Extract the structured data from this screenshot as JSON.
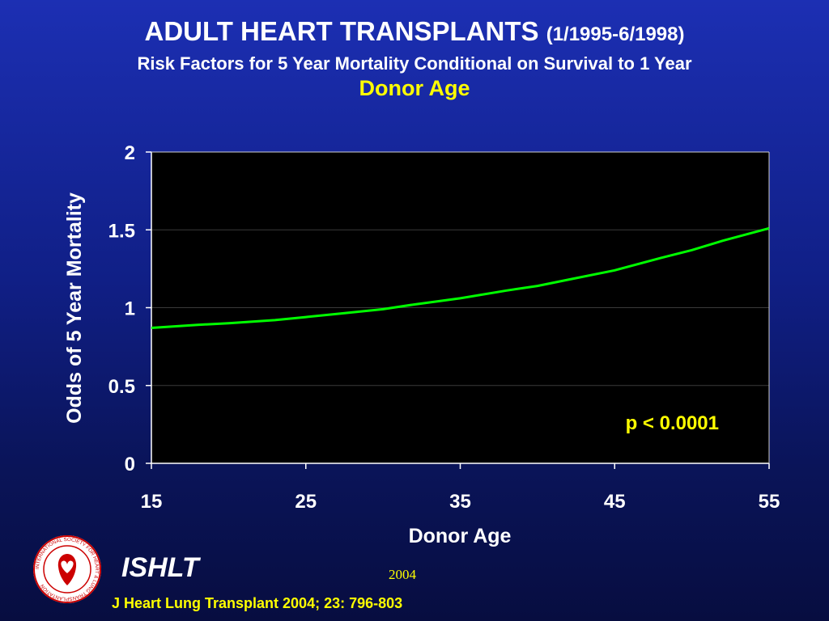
{
  "header": {
    "title": "ADULT HEART TRANSPLANTS",
    "date_range": "(1/1995-6/1998)",
    "subtitle": "Risk Factors for 5 Year Mortality Conditional on Survival to 1 Year"
  },
  "chart_data": {
    "type": "line",
    "title": "Donor Age",
    "xlabel": "Donor Age",
    "ylabel": "Odds of 5 Year Mortality",
    "xlim": [
      15,
      55
    ],
    "ylim": [
      0,
      2
    ],
    "x_ticks": [
      "15",
      "25",
      "35",
      "45",
      "55"
    ],
    "y_ticks": [
      "0",
      "0.5",
      "1",
      "1.5",
      "2"
    ],
    "grid": "horizontal",
    "annotation": "p < 0.0001",
    "series": [
      {
        "color": "#00ff00",
        "x": [
          15,
          18,
          20,
          23,
          25,
          27,
          30,
          32,
          35,
          38,
          40,
          42,
          45,
          48,
          50,
          52,
          55
        ],
        "y": [
          0.87,
          0.89,
          0.9,
          0.92,
          0.94,
          0.96,
          0.99,
          1.02,
          1.06,
          1.11,
          1.14,
          1.18,
          1.24,
          1.32,
          1.37,
          1.43,
          1.51
        ]
      }
    ],
    "colors": {
      "plot_background": "#000000",
      "line": "#00ff00",
      "annotation": "#ffff00"
    }
  },
  "footer": {
    "org": "ISHLT",
    "year": "2004",
    "citation": "J Heart Lung Transplant 2004; 23: 796-803",
    "logo_icon": "ishlt-seal-icon",
    "logo_ring_text": "INTERNATIONAL SOCIETY FOR HEART & LUNG TRANSPLANTATION"
  }
}
